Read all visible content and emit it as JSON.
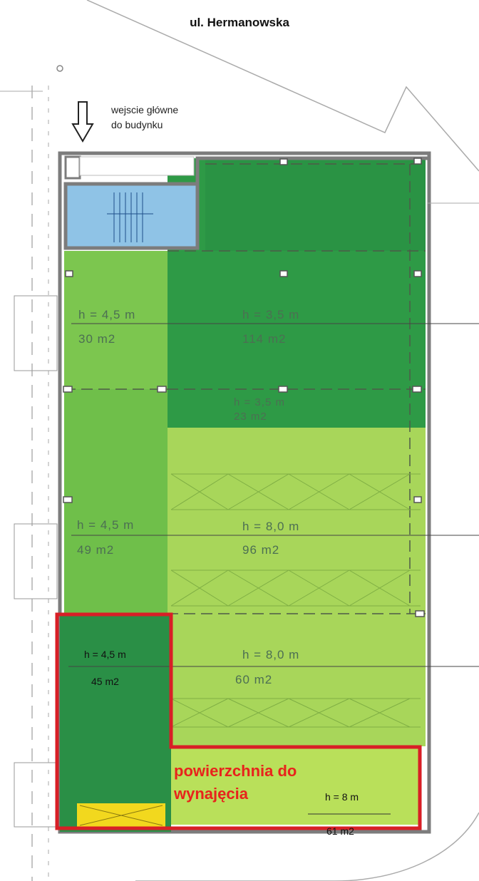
{
  "street_name": "ul. Hermanowska",
  "entrance": {
    "line1": "wejscie główne",
    "line2": "do budynku"
  },
  "zones": [
    {
      "id": "A",
      "height": "h  =  4,5 m",
      "area": "30 m2",
      "color": "#7cc64f"
    },
    {
      "id": "B",
      "height": "h  =  3,5 m",
      "area": "114 m2",
      "color": "#2e9a46"
    },
    {
      "id": "C",
      "height": "h  =  3,5 m",
      "area": "23 m2",
      "color": "#2e9a46"
    },
    {
      "id": "D",
      "height": "h  =  4,5 m",
      "area": "49 m2",
      "color": "#6fbf4a"
    },
    {
      "id": "E",
      "height": "h  =  8,0 m",
      "area": "96 m2",
      "color": "#a8d65a"
    },
    {
      "id": "F",
      "height": "h = 4,5 m",
      "area": "45 m2",
      "color": "#2a8f46"
    },
    {
      "id": "G",
      "height": "h  =  8,0 m",
      "area": "60  m2",
      "color": "#a8d65a"
    },
    {
      "id": "H",
      "height": "h = 8 m",
      "area": "61 m2",
      "color": "#b9e05a"
    }
  ],
  "rental_label": {
    "line1": "powierzchnia do",
    "line2": "wynajęcia",
    "color": "#e8231c"
  },
  "colors": {
    "staircase": "#8fc3e6",
    "wall": "#7c7c7c",
    "outline": "#d81f26",
    "yellow": "#f2d81e"
  }
}
